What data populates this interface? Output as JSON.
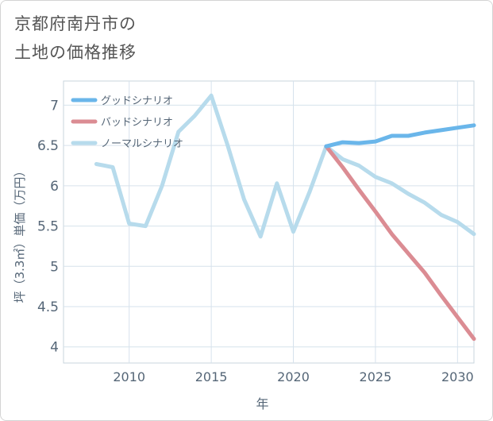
{
  "header": {
    "title_line1": "京都府南丹市の",
    "title_line2": "土地の価格推移"
  },
  "chart_data": {
    "type": "line",
    "xlabel": "年",
    "ylabel": "坪（3.3㎡）単価（万円）",
    "xlim": [
      2006,
      2031
    ],
    "ylim": [
      3.8,
      7.3
    ],
    "x_ticks": [
      2010,
      2015,
      2020,
      2025,
      2030
    ],
    "y_ticks": [
      4,
      4.5,
      5,
      5.5,
      6,
      6.5,
      7
    ],
    "grid": true,
    "legend_position": "top-left",
    "series": [
      {
        "name": "グッドシナリオ",
        "color": "#6ab6ea",
        "x": [
          2022,
          2023,
          2024,
          2025,
          2026,
          2027,
          2028,
          2029,
          2030,
          2031
        ],
        "y": [
          6.49,
          6.54,
          6.53,
          6.55,
          6.62,
          6.62,
          6.66,
          6.69,
          6.72,
          6.75
        ]
      },
      {
        "name": "バッドシナリオ",
        "color": "#db8c93",
        "x": [
          2022,
          2023,
          2024,
          2025,
          2026,
          2027,
          2028,
          2029,
          2030,
          2031
        ],
        "y": [
          6.49,
          6.23,
          5.95,
          5.68,
          5.4,
          5.16,
          4.92,
          4.64,
          4.37,
          4.1
        ]
      },
      {
        "name": "ノーマルシナリオ",
        "color": "#b7dbec",
        "x": [
          2008,
          2009,
          2010,
          2011,
          2012,
          2013,
          2014,
          2015,
          2016,
          2017,
          2018,
          2019,
          2020,
          2021,
          2022,
          2023,
          2024,
          2025,
          2026,
          2027,
          2028,
          2029,
          2030,
          2031
        ],
        "y": [
          6.27,
          6.23,
          5.53,
          5.5,
          6.0,
          6.67,
          6.87,
          7.12,
          6.5,
          5.83,
          5.37,
          6.03,
          5.43,
          5.93,
          6.49,
          6.33,
          6.25,
          6.11,
          6.03,
          5.9,
          5.79,
          5.64,
          5.55,
          5.4
        ]
      }
    ]
  }
}
